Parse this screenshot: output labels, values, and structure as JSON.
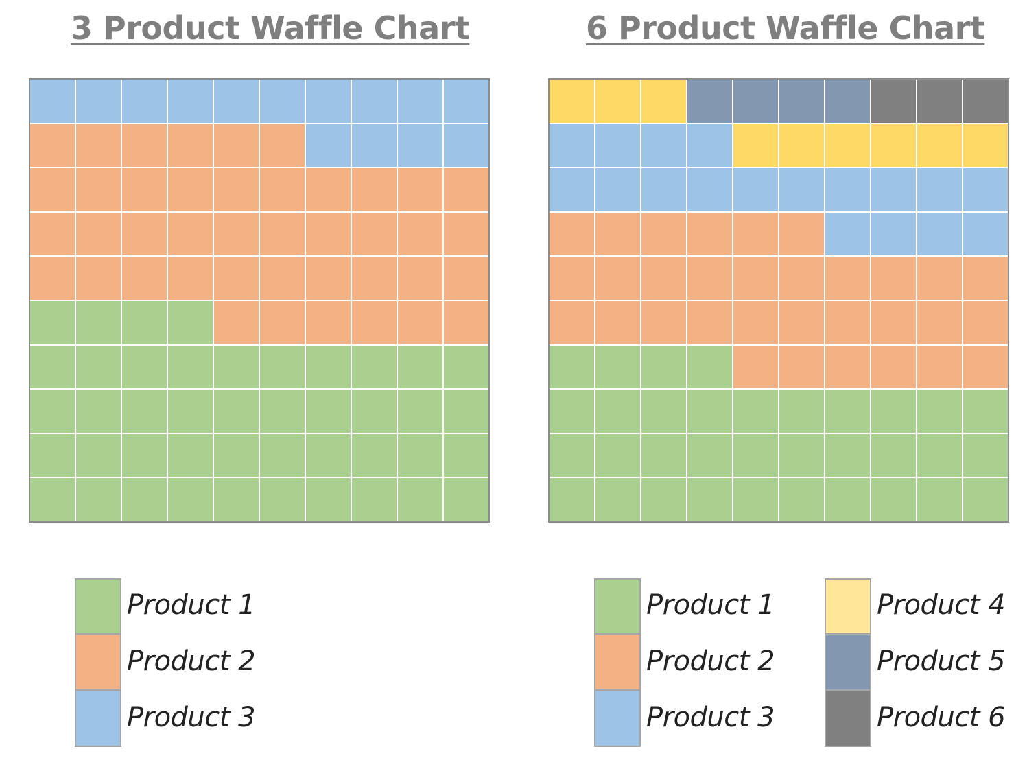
{
  "chart_data": [
    {
      "type": "waffle",
      "title": "3 Product Waffle Chart",
      "grid": {
        "rows": 10,
        "cols": 10
      },
      "series": [
        {
          "name": "Product 1",
          "value": 44,
          "color": "#a9d08e"
        },
        {
          "name": "Product 2",
          "value": 42,
          "color": "#f4b183"
        },
        {
          "name": "Product 3",
          "value": 14,
          "color": "#9dc3e6"
        }
      ],
      "legend": [
        {
          "label": "Product 1",
          "color": "#a9d08e"
        },
        {
          "label": "Product 2",
          "color": "#f4b183"
        },
        {
          "label": "Product 3",
          "color": "#9dc3e6"
        }
      ]
    },
    {
      "type": "waffle",
      "title": "6 Product Waffle Chart",
      "grid": {
        "rows": 10,
        "cols": 10
      },
      "series": [
        {
          "name": "Product 1",
          "value": 34,
          "color": "#a9d08e"
        },
        {
          "name": "Product 2",
          "value": 32,
          "color": "#f4b183"
        },
        {
          "name": "Product 3",
          "value": 18,
          "color": "#9dc3e6"
        },
        {
          "name": "Product 4",
          "value": 9,
          "color": "#ffd966"
        },
        {
          "name": "Product 5",
          "value": 4,
          "color": "#8497b0"
        },
        {
          "name": "Product 6",
          "value": 3,
          "color": "#808080"
        }
      ],
      "legend": [
        {
          "label": "Product 1",
          "color": "#a9d08e"
        },
        {
          "label": "Product 2",
          "color": "#f4b183"
        },
        {
          "label": "Product 3",
          "color": "#9dc3e6"
        },
        {
          "label": "Product 4",
          "color": "#ffe699"
        },
        {
          "label": "Product 5",
          "color": "#8497b0"
        },
        {
          "label": "Product 6",
          "color": "#808080"
        }
      ]
    }
  ]
}
